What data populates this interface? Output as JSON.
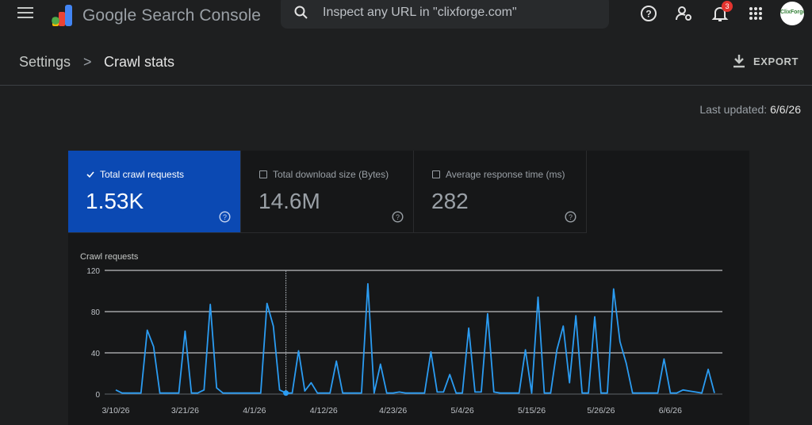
{
  "app": {
    "title": "Google Search Console",
    "search_placeholder": "Inspect any URL in \"clixforge.com\"",
    "notification_count": "3",
    "avatar_text": "ClixForge"
  },
  "breadcrumb": {
    "parent": "Settings",
    "separator": ">",
    "current": "Crawl stats"
  },
  "export_label": "EXPORT",
  "last_updated": {
    "label": "Last updated:",
    "value": "6/6/26"
  },
  "metrics": [
    {
      "label": "Total crawl requests",
      "value": "1.53K",
      "selected": true
    },
    {
      "label": "Total download size (Bytes)",
      "value": "14.6M",
      "selected": false
    },
    {
      "label": "Average response time (ms)",
      "value": "282",
      "selected": false
    }
  ],
  "colors": {
    "accent": "#0b49b3",
    "line": "#2b9cf2",
    "background": "#1e1f20"
  },
  "chart_data": {
    "type": "line",
    "title": "Crawl requests",
    "ylim": [
      0,
      120
    ],
    "yticks": [
      0,
      40,
      80,
      120
    ],
    "xtick_labels": [
      "3/10/26",
      "3/21/26",
      "4/1/26",
      "4/12/26",
      "4/23/26",
      "5/4/26",
      "5/15/26",
      "5/26/26",
      "6/6/26"
    ],
    "start_date": "3/10/26",
    "grid": true,
    "series": [
      {
        "values": [
          4,
          1,
          1,
          1,
          1,
          62,
          46,
          1,
          1,
          1,
          1,
          61,
          1,
          1,
          4,
          87,
          6,
          1,
          1,
          1,
          1,
          1,
          1,
          1,
          88,
          66,
          4,
          1,
          1,
          42,
          3,
          11,
          1,
          1,
          1,
          32,
          1,
          1,
          1,
          1,
          107,
          1,
          29,
          1,
          1,
          2,
          1,
          1,
          1,
          1,
          41,
          2,
          2,
          19,
          1,
          1,
          64,
          2,
          2,
          78,
          2,
          1,
          1,
          1,
          1,
          43,
          1,
          94,
          1,
          1,
          43,
          66,
          11,
          76,
          1,
          1,
          75,
          1,
          1,
          102,
          51,
          30,
          1,
          1,
          1,
          1,
          1,
          34,
          1,
          1,
          4,
          3,
          2,
          1,
          24,
          1
        ]
      }
    ],
    "highlight_date": "4/6/26"
  }
}
